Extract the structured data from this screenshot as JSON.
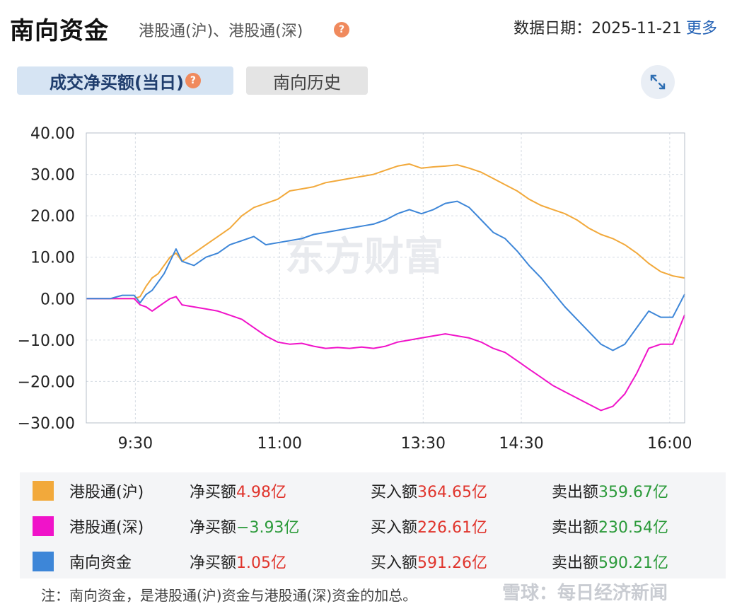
{
  "header": {
    "title": "南向资金",
    "subtitle": "港股通(沪)、港股通(深)",
    "help_glyph": "?",
    "date_label": "数据日期：2025-11-21",
    "more_label": "更多"
  },
  "tabs": [
    {
      "label": "成交净买额(当日)",
      "active": true
    },
    {
      "label": "南向历史",
      "active": false
    }
  ],
  "watermark_chart": "东方财富",
  "chart_data": {
    "type": "line",
    "yticks": [
      "40.00",
      "30.00",
      "20.00",
      "10.00",
      "0.00",
      "−10.00",
      "−20.00",
      "−30.00"
    ],
    "xticks": [
      "9:30",
      "11:00",
      "13:30",
      "14:30",
      "16:00"
    ],
    "ylim": [
      -30,
      40
    ],
    "series": [
      {
        "name": "港股通(沪)",
        "color": "#f2a93b",
        "points": [
          [
            0,
            0
          ],
          [
            0.04,
            0
          ],
          [
            0.08,
            0
          ],
          [
            0.09,
            0.5
          ],
          [
            0.1,
            3
          ],
          [
            0.11,
            5
          ],
          [
            0.12,
            6
          ],
          [
            0.13,
            8
          ],
          [
            0.14,
            10
          ],
          [
            0.15,
            11
          ],
          [
            0.16,
            9
          ],
          [
            0.17,
            10
          ],
          [
            0.18,
            11
          ],
          [
            0.2,
            13
          ],
          [
            0.22,
            15
          ],
          [
            0.24,
            17
          ],
          [
            0.26,
            20
          ],
          [
            0.28,
            22
          ],
          [
            0.3,
            23
          ],
          [
            0.32,
            24
          ],
          [
            0.34,
            26
          ],
          [
            0.36,
            26.5
          ],
          [
            0.38,
            27
          ],
          [
            0.4,
            28
          ],
          [
            0.42,
            28.5
          ],
          [
            0.44,
            29
          ],
          [
            0.46,
            29.5
          ],
          [
            0.48,
            30
          ],
          [
            0.5,
            31
          ],
          [
            0.52,
            32
          ],
          [
            0.54,
            32.5
          ],
          [
            0.56,
            31.5
          ],
          [
            0.58,
            31.8
          ],
          [
            0.6,
            32
          ],
          [
            0.62,
            32.3
          ],
          [
            0.64,
            31.5
          ],
          [
            0.66,
            30.5
          ],
          [
            0.68,
            29
          ],
          [
            0.7,
            27.5
          ],
          [
            0.72,
            26
          ],
          [
            0.74,
            24
          ],
          [
            0.76,
            22.5
          ],
          [
            0.78,
            21.5
          ],
          [
            0.8,
            20.5
          ],
          [
            0.82,
            19
          ],
          [
            0.84,
            17
          ],
          [
            0.86,
            15.5
          ],
          [
            0.88,
            14.5
          ],
          [
            0.9,
            13
          ],
          [
            0.92,
            11
          ],
          [
            0.94,
            8.5
          ],
          [
            0.96,
            6.5
          ],
          [
            0.98,
            5.5
          ],
          [
            1,
            4.98
          ]
        ]
      },
      {
        "name": "港股通(深)",
        "color": "#f013c9",
        "points": [
          [
            0,
            0
          ],
          [
            0.04,
            0
          ],
          [
            0.08,
            0
          ],
          [
            0.09,
            -1.5
          ],
          [
            0.1,
            -2
          ],
          [
            0.11,
            -3
          ],
          [
            0.12,
            -2
          ],
          [
            0.13,
            -1
          ],
          [
            0.14,
            0
          ],
          [
            0.15,
            0.5
          ],
          [
            0.16,
            -1.5
          ],
          [
            0.18,
            -2
          ],
          [
            0.2,
            -2.5
          ],
          [
            0.22,
            -3
          ],
          [
            0.24,
            -4
          ],
          [
            0.26,
            -5
          ],
          [
            0.28,
            -7
          ],
          [
            0.3,
            -9
          ],
          [
            0.32,
            -10.5
          ],
          [
            0.34,
            -11
          ],
          [
            0.36,
            -10.8
          ],
          [
            0.38,
            -11.5
          ],
          [
            0.4,
            -12
          ],
          [
            0.42,
            -11.8
          ],
          [
            0.44,
            -12
          ],
          [
            0.46,
            -11.7
          ],
          [
            0.48,
            -12
          ],
          [
            0.5,
            -11.5
          ],
          [
            0.52,
            -10.5
          ],
          [
            0.54,
            -10
          ],
          [
            0.56,
            -9.5
          ],
          [
            0.58,
            -9
          ],
          [
            0.6,
            -8.5
          ],
          [
            0.62,
            -9
          ],
          [
            0.64,
            -9.5
          ],
          [
            0.66,
            -10.5
          ],
          [
            0.68,
            -12
          ],
          [
            0.7,
            -13
          ],
          [
            0.72,
            -15
          ],
          [
            0.74,
            -17
          ],
          [
            0.76,
            -19
          ],
          [
            0.78,
            -21
          ],
          [
            0.8,
            -22.5
          ],
          [
            0.82,
            -24
          ],
          [
            0.84,
            -25.5
          ],
          [
            0.86,
            -27
          ],
          [
            0.88,
            -26
          ],
          [
            0.9,
            -23
          ],
          [
            0.92,
            -18
          ],
          [
            0.94,
            -12
          ],
          [
            0.96,
            -11
          ],
          [
            0.98,
            -11
          ],
          [
            1,
            -3.93
          ]
        ]
      },
      {
        "name": "南向资金",
        "color": "#3d86d8",
        "points": [
          [
            0,
            0
          ],
          [
            0.04,
            0
          ],
          [
            0.06,
            0.8
          ],
          [
            0.08,
            0.8
          ],
          [
            0.09,
            -1
          ],
          [
            0.1,
            1
          ],
          [
            0.11,
            2
          ],
          [
            0.12,
            4
          ],
          [
            0.13,
            6
          ],
          [
            0.14,
            9
          ],
          [
            0.15,
            12
          ],
          [
            0.16,
            9
          ],
          [
            0.18,
            8
          ],
          [
            0.2,
            10
          ],
          [
            0.22,
            11
          ],
          [
            0.24,
            13
          ],
          [
            0.26,
            14
          ],
          [
            0.28,
            15
          ],
          [
            0.3,
            13
          ],
          [
            0.32,
            13.5
          ],
          [
            0.34,
            14
          ],
          [
            0.36,
            14.5
          ],
          [
            0.38,
            15.5
          ],
          [
            0.4,
            16
          ],
          [
            0.42,
            16.5
          ],
          [
            0.44,
            17
          ],
          [
            0.46,
            17.5
          ],
          [
            0.48,
            18
          ],
          [
            0.5,
            19
          ],
          [
            0.52,
            20.5
          ],
          [
            0.54,
            21.5
          ],
          [
            0.56,
            20.5
          ],
          [
            0.58,
            21.5
          ],
          [
            0.6,
            23
          ],
          [
            0.62,
            23.5
          ],
          [
            0.64,
            22
          ],
          [
            0.66,
            19
          ],
          [
            0.68,
            16
          ],
          [
            0.7,
            14.5
          ],
          [
            0.72,
            11.5
          ],
          [
            0.74,
            8
          ],
          [
            0.76,
            5
          ],
          [
            0.78,
            1.5
          ],
          [
            0.8,
            -2
          ],
          [
            0.82,
            -5
          ],
          [
            0.84,
            -8
          ],
          [
            0.86,
            -11
          ],
          [
            0.88,
            -12.5
          ],
          [
            0.9,
            -11
          ],
          [
            0.92,
            -7
          ],
          [
            0.94,
            -3
          ],
          [
            0.96,
            -4.5
          ],
          [
            0.98,
            -4.5
          ],
          [
            1,
            1.05
          ]
        ]
      }
    ]
  },
  "legend": [
    {
      "name": "港股通(沪)",
      "color": "#f2a93b",
      "net_label": "净买额",
      "net_value": "4.98亿",
      "net_tone": "red",
      "buy_label": "买入额",
      "buy_value": "364.65亿",
      "sell_label": "卖出额",
      "sell_value": "359.67亿"
    },
    {
      "name": "港股通(深)",
      "color": "#f013c9",
      "net_label": "净买额",
      "net_value": "−3.93亿",
      "net_tone": "green",
      "buy_label": "买入额",
      "buy_value": "226.61亿",
      "sell_label": "卖出额",
      "sell_value": "230.54亿"
    },
    {
      "name": "南向资金",
      "color": "#3d86d8",
      "net_label": "净买额",
      "net_value": "1.05亿",
      "net_tone": "red",
      "buy_label": "买入额",
      "buy_value": "591.26亿",
      "sell_label": "卖出额",
      "sell_value": "590.21亿"
    }
  ],
  "note": "注：南向资金，是港股通(沪)资金与港股通(深)资金的加总。",
  "watermark_footer": "雪球：每日经济新闻"
}
